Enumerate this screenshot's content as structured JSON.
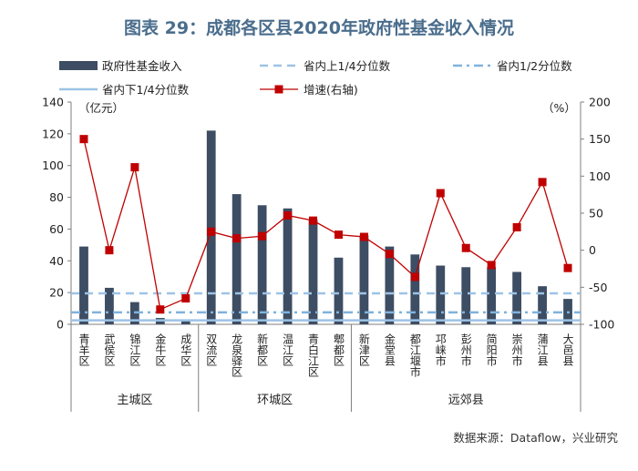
{
  "page": {
    "title": "图表 29：成都各区县2020年政府性基金收入情况",
    "source": "数据来源：Dataflow，兴业研究"
  },
  "chart_data": {
    "type": "bar",
    "title": "图表 29：成都各区县2020年政府性基金收入情况",
    "left_axis_unit": "（亿元）",
    "right_axis_unit": "（%）",
    "ylim": [
      0,
      140
    ],
    "y_ticks": [
      0,
      20,
      40,
      60,
      80,
      100,
      120,
      140
    ],
    "y2lim": [
      -100,
      200
    ],
    "y2_ticks": [
      -100,
      -50,
      0,
      50,
      100,
      150,
      200
    ],
    "categories": [
      "青羊区",
      "武侯区",
      "锦江区",
      "金牛区",
      "成华区",
      "双流区",
      "龙泉驿区",
      "新都区",
      "温江区",
      "青白江区",
      "郫都区",
      "新津区",
      "金堂县",
      "都江堰市",
      "邛崃市",
      "彭州市",
      "简阳市",
      "崇州市",
      "蒲江县",
      "大邑县"
    ],
    "groups": [
      {
        "name": "主城区",
        "count": 5
      },
      {
        "name": "环城区",
        "count": 6
      },
      {
        "name": "远郊县",
        "count": 9
      }
    ],
    "series": [
      {
        "name": "政府性基金收入",
        "type": "bar",
        "axis": "left",
        "color": "#3d4d63",
        "values": [
          49,
          23,
          14,
          4,
          3,
          122,
          82,
          75,
          73,
          66,
          42,
          56,
          49,
          44,
          37,
          36,
          36,
          33,
          24,
          16
        ]
      },
      {
        "name": "增速(右轴)",
        "type": "line",
        "axis": "right",
        "color": "#c00000",
        "values": [
          150,
          0,
          112,
          -80,
          -65,
          25,
          16,
          19,
          47,
          40,
          21,
          18,
          -5,
          -36,
          77,
          3,
          -20,
          31,
          92,
          -24
        ]
      }
    ],
    "reference_lines": [
      {
        "name": "省内上1/4分位数",
        "value": 19.5,
        "style": "dashed",
        "color": "#9dc3e6"
      },
      {
        "name": "省内1/2分位数",
        "value": 7.5,
        "style": "dashdot",
        "color": "#7fb2dd"
      },
      {
        "name": "省内下1/4分位数",
        "value": 2.5,
        "style": "solid",
        "color": "#9dc3e6"
      }
    ],
    "legend": [
      "政府性基金收入",
      "省内上1/4分位数",
      "省内1/2分位数",
      "省内下1/4分位数",
      "增速(右轴)"
    ]
  }
}
